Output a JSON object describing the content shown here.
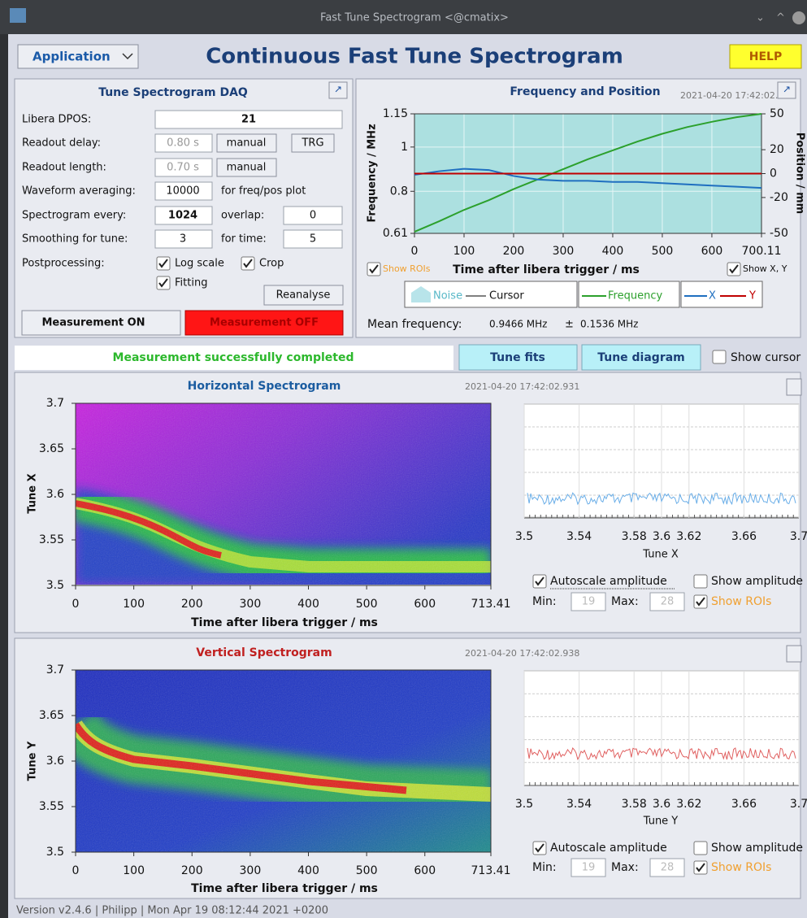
{
  "window": {
    "title": "Fast Tune Spectrogram <@cmatix>"
  },
  "header": {
    "menu": "Application",
    "title": "Continuous Fast Tune Spectrogram",
    "help": "HELP"
  },
  "daq": {
    "title": "Tune Spectrogram DAQ",
    "libera_dpos": {
      "label": "Libera DPOS:",
      "value": 21
    },
    "readout_delay": {
      "label": "Readout delay:",
      "value": "0.80 s",
      "button": "manual",
      "trigger": "TRG"
    },
    "readout_length": {
      "label": "Readout length:",
      "value": "0.70 s",
      "button": "manual"
    },
    "waveform_averaging": {
      "label": "Waveform averaging:",
      "value": 10000,
      "note": "for freq/pos plot"
    },
    "spectrogram_every": {
      "label": "Spectrogram every:",
      "value": 1024,
      "overlap_label": "overlap:",
      "overlap": 0
    },
    "smoothing": {
      "label": "Smoothing for tune:",
      "value": 3,
      "time_label": "for time:",
      "time": 5
    },
    "postprocessing": {
      "label": "Postprocessing:",
      "log_scale": {
        "label": "Log scale",
        "checked": true
      },
      "crop": {
        "label": "Crop",
        "checked": true
      },
      "fitting": {
        "label": "Fitting",
        "checked": true
      }
    },
    "reanalyse": "Reanalyse",
    "measurement_on": "Measurement ON",
    "measurement_off": "Measurement OFF"
  },
  "freq_panel": {
    "title": "Frequency and Position",
    "timestamp": "2021-04-20 17:42:02.9",
    "chart": {
      "type": "line",
      "xlabel": "Time after libera trigger / ms",
      "ylabel": "Frequency / MHz",
      "y2label": "Position / mm",
      "x": [
        0,
        50,
        100,
        150,
        200,
        250,
        300,
        350,
        400,
        450,
        500,
        550,
        600,
        650,
        700
      ],
      "series": [
        {
          "name": "Frequency",
          "color": "#2ca02c",
          "values": [
            0.617,
            0.665,
            0.716,
            0.76,
            0.81,
            0.855,
            0.9,
            0.945,
            0.985,
            1.025,
            1.06,
            1.09,
            1.114,
            1.135,
            1.15
          ]
        },
        {
          "name": "X",
          "color": "#1f6fc0",
          "axis": "y2",
          "values": [
            -1,
            2,
            4,
            3,
            -2,
            -5,
            -6,
            -6,
            -7,
            -7,
            -8,
            -9,
            -10,
            -11,
            -12
          ]
        },
        {
          "name": "Y",
          "color": "#c00000",
          "axis": "y2",
          "values": [
            0,
            0,
            0,
            0,
            0,
            0,
            0,
            0,
            0,
            0,
            0,
            0,
            0,
            0,
            0
          ]
        }
      ],
      "xlim": [
        0,
        700.11
      ],
      "xticks": [
        0,
        100,
        200,
        300,
        400,
        500,
        600,
        700.11
      ],
      "ylim": [
        0.61,
        1.15
      ],
      "yticks": [
        0.61,
        0.8,
        1,
        1.15
      ],
      "y2lim": [
        -50,
        50
      ],
      "y2ticks": [
        -50,
        -20,
        0,
        20,
        50
      ],
      "grid": true,
      "noise_label": "Noise",
      "cursor_label": "Cursor"
    },
    "show_rois": {
      "label": "Show ROIs",
      "checked": true
    },
    "show_xy": {
      "label": "Show X, Y",
      "checked": true
    },
    "mean_label": "Mean frequency:",
    "mean_value": "0.9466 MHz",
    "plus_minus": "±",
    "mean_error": "0.1536 MHz"
  },
  "status": {
    "message": "Measurement successfully completed",
    "tune_fits": "Tune fits",
    "tune_diagram": "Tune diagram",
    "show_cursor": {
      "label": "Show cursor",
      "checked": false
    }
  },
  "spectrograms": [
    {
      "title": "Horizontal Spectrogram",
      "timestamp": "2021-04-20 17:42:02.931",
      "plot": {
        "type": "heatmap",
        "xlabel": "Time after libera trigger / ms",
        "ylabel": "Tune X",
        "xlim": [
          0,
          713.41
        ],
        "xticks": [
          0,
          100,
          200,
          300,
          400,
          500,
          600,
          713.41
        ],
        "ylim": [
          3.5,
          3.7
        ],
        "yticks": [
          3.5,
          3.55,
          3.6,
          3.65,
          3.7
        ]
      },
      "spectrum": {
        "xlabel": "Tune X",
        "xlim": [
          3.5,
          3.7
        ],
        "xticks": [
          3.5,
          3.54,
          3.58,
          3.6,
          3.62,
          3.66,
          3.7
        ]
      },
      "controls": {
        "autoscale": {
          "label": "Autoscale amplitude",
          "checked": true
        },
        "show_amplitude": {
          "label": "Show amplitude",
          "checked": false
        },
        "min_label": "Min:",
        "min": 19,
        "max_label": "Max:",
        "max": 28,
        "show_rois": {
          "label": "Show ROIs",
          "checked": true
        }
      }
    },
    {
      "title": "Vertical Spectrogram",
      "timestamp": "2021-04-20 17:42:02.938",
      "plot": {
        "type": "heatmap",
        "xlabel": "Time after libera trigger / ms",
        "ylabel": "Tune Y",
        "xlim": [
          0,
          713.41
        ],
        "xticks": [
          0,
          100,
          200,
          300,
          400,
          500,
          600,
          713.41
        ],
        "ylim": [
          3.5,
          3.7
        ],
        "yticks": [
          3.5,
          3.55,
          3.6,
          3.65,
          3.7
        ]
      },
      "spectrum": {
        "xlabel": "Tune Y",
        "xlim": [
          3.5,
          3.7
        ],
        "xticks": [
          3.5,
          3.54,
          3.58,
          3.6,
          3.62,
          3.66,
          3.7
        ]
      },
      "controls": {
        "autoscale": {
          "label": "Autoscale amplitude",
          "checked": true
        },
        "show_amplitude": {
          "label": "Show amplitude",
          "checked": false
        },
        "min_label": "Min:",
        "min": 19,
        "max_label": "Max:",
        "max": 28,
        "show_rois": {
          "label": "Show ROIs",
          "checked": true
        }
      }
    }
  ],
  "footer": "Version v2.4.6 | Philipp | Mon Apr 19 08:12:44 2021 +0200"
}
